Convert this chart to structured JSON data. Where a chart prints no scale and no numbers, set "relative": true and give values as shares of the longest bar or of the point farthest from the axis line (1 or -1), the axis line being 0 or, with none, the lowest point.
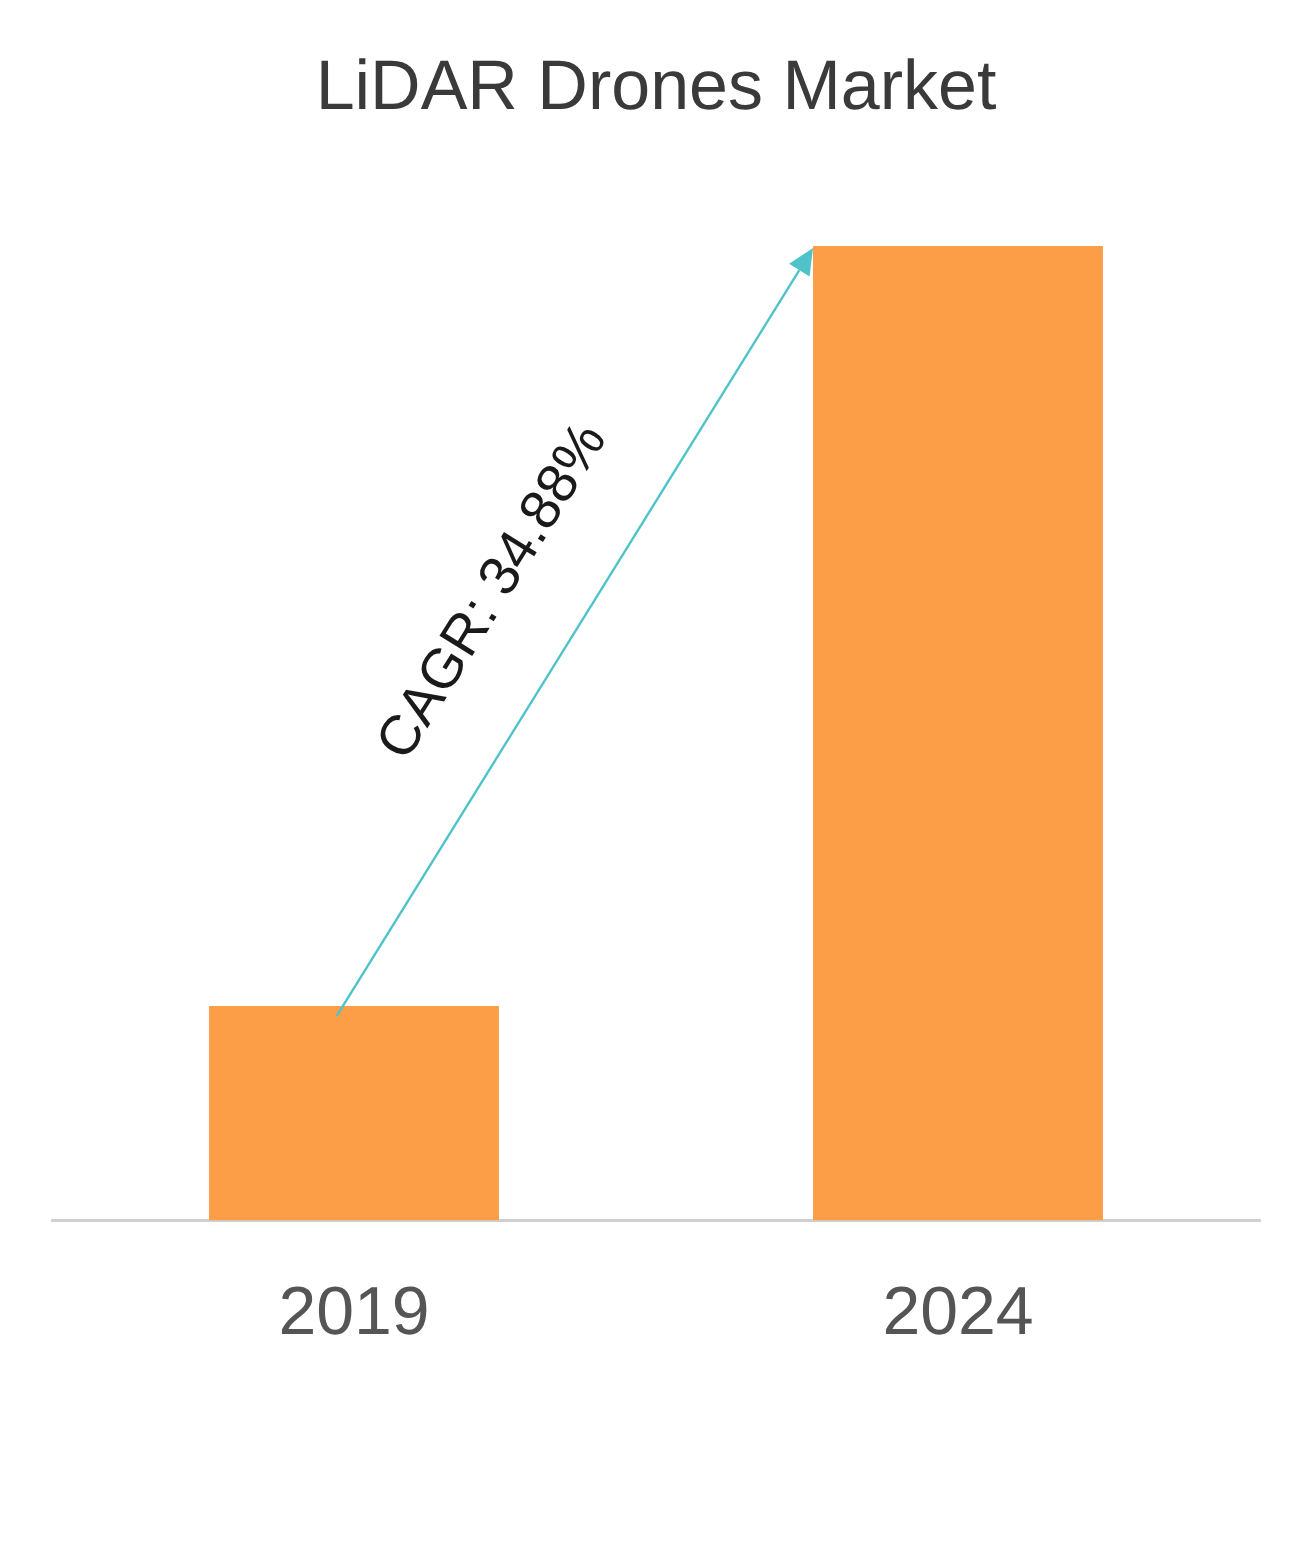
{
  "chart_data": {
    "type": "bar",
    "title": "LiDAR Drones Market",
    "categories": [
      "2019",
      "2024"
    ],
    "values": [
      0.22,
      1
    ],
    "color": "#fb9e47",
    "relative": true,
    "annotations": [
      "CAGR: 34.88%"
    ]
  }
}
